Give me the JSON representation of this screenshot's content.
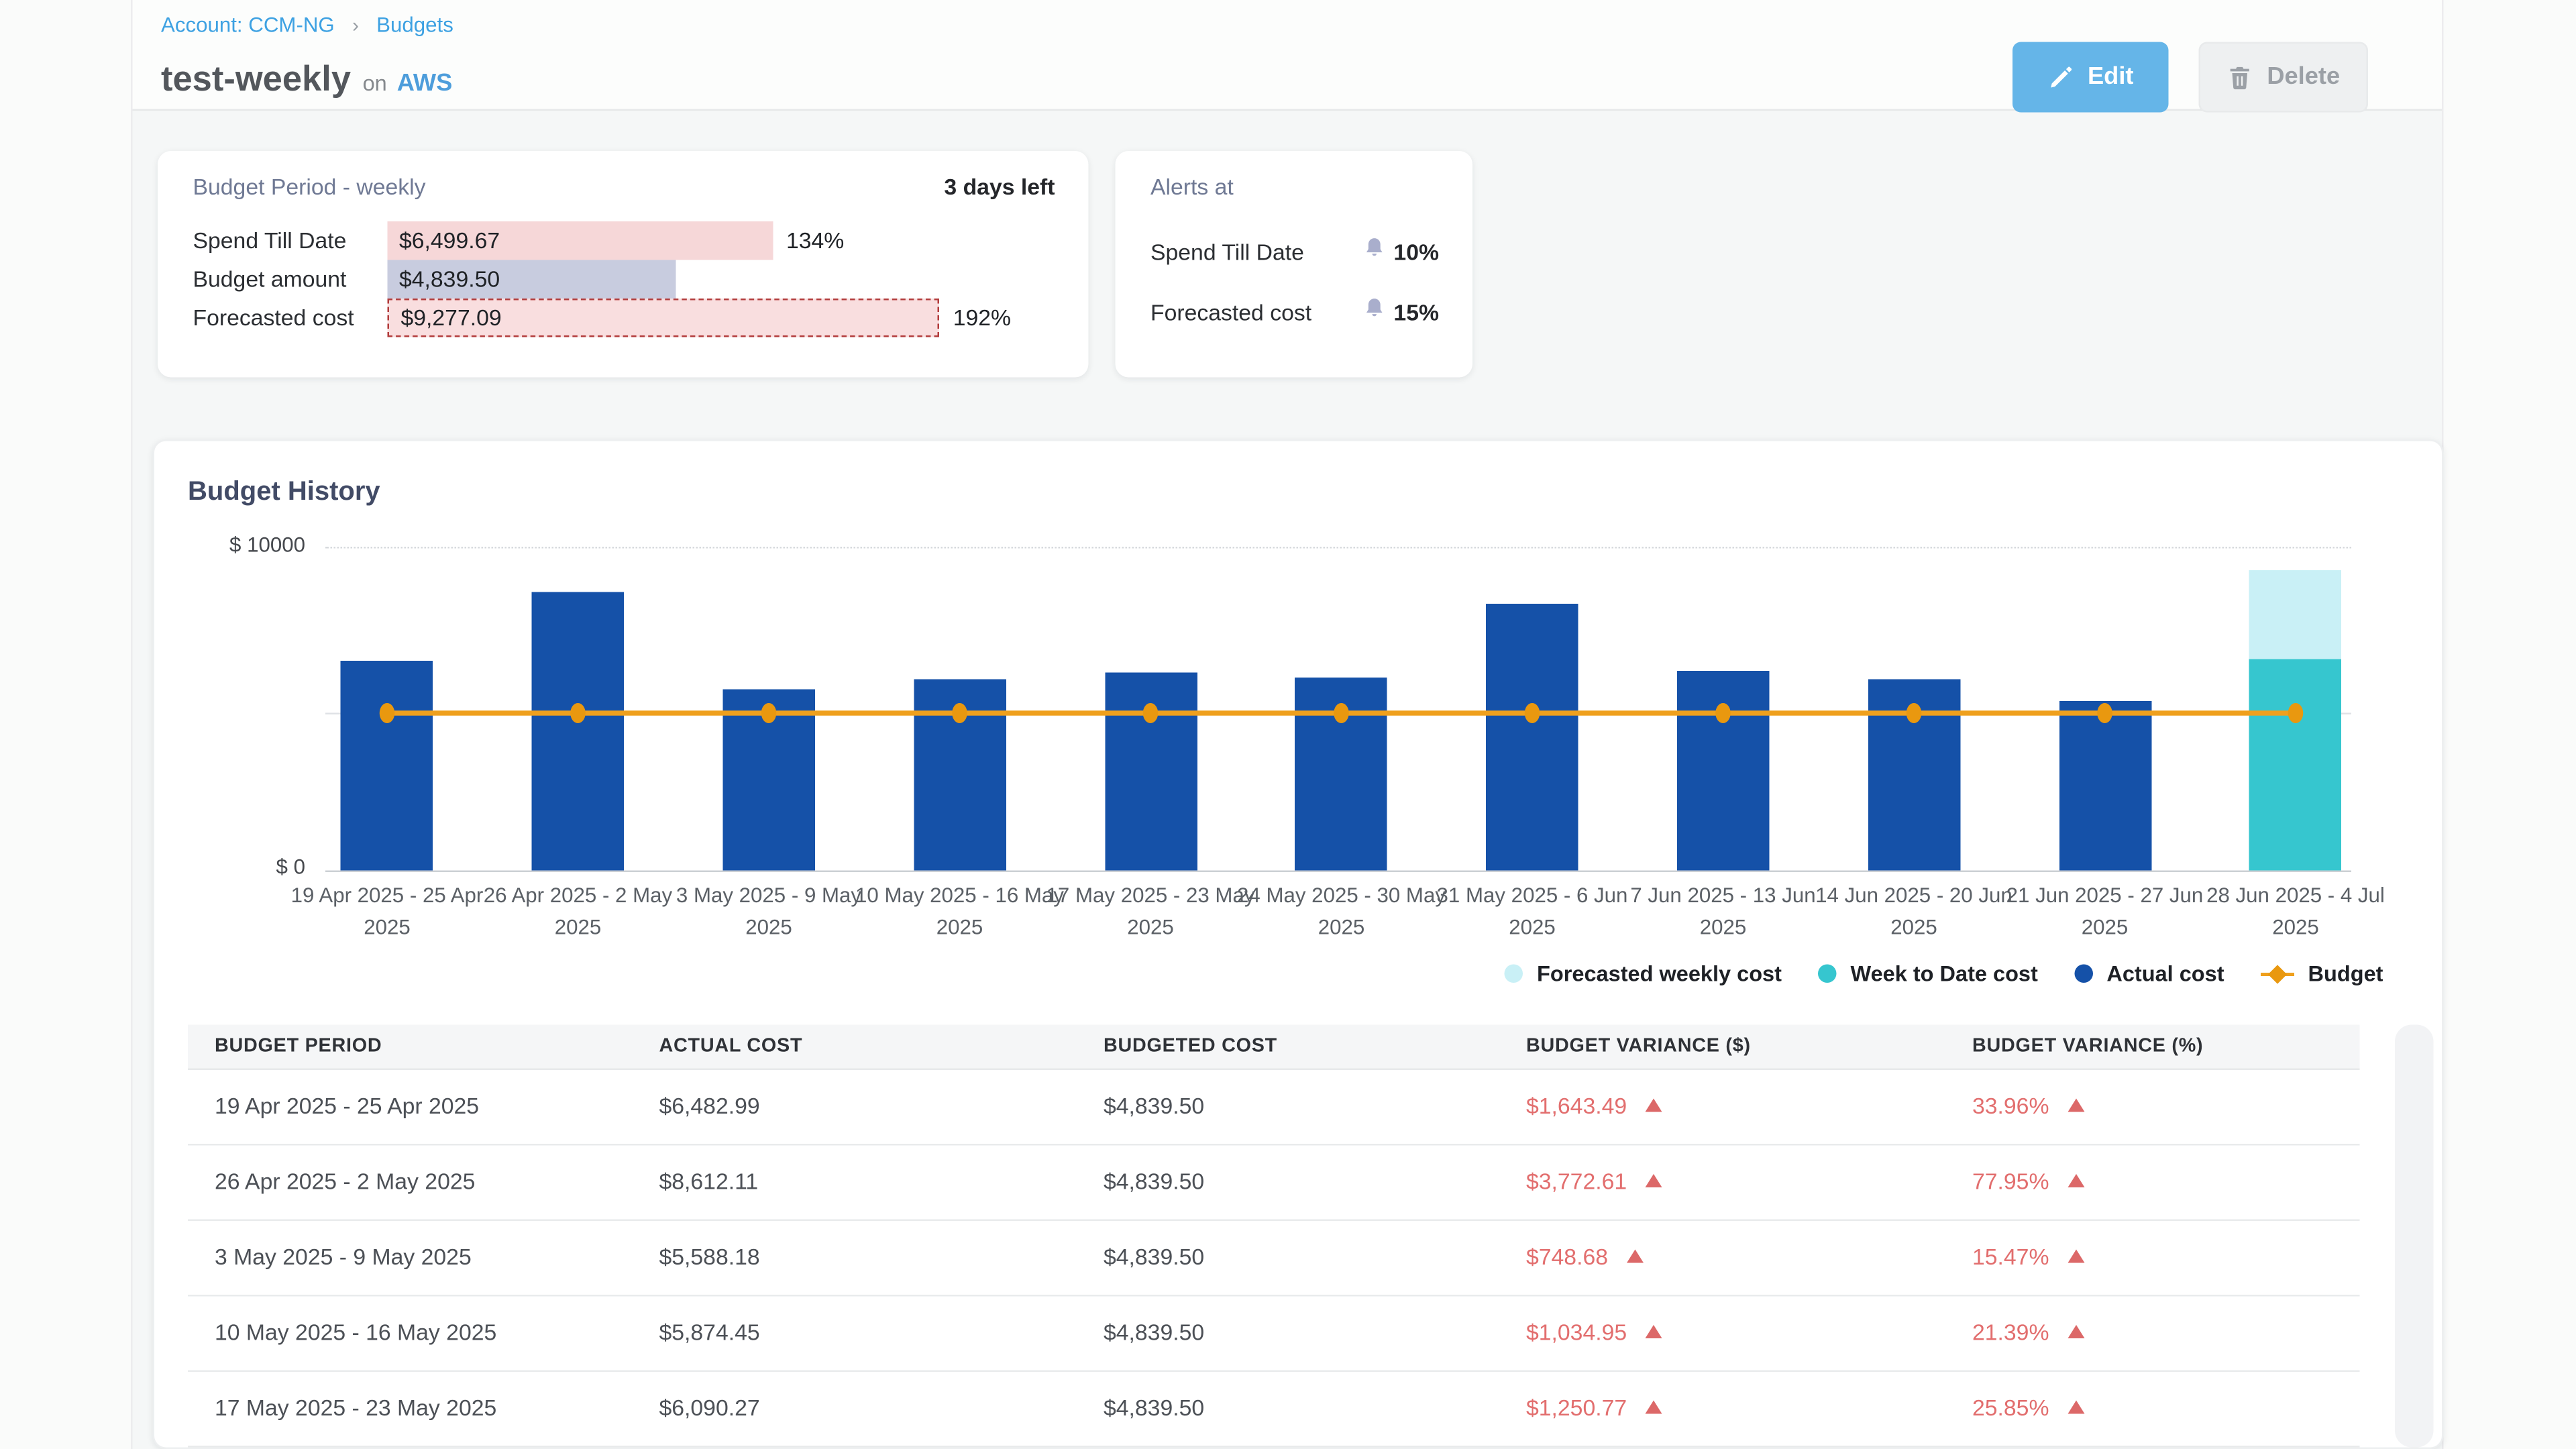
{
  "breadcrumb": {
    "account": "Account: CCM-NG",
    "separator": "›",
    "section": "Budgets"
  },
  "header": {
    "title": "test-weekly",
    "conjunction": "on",
    "platform": "AWS",
    "edit_label": "Edit",
    "delete_label": "Delete"
  },
  "budget_period_card": {
    "title": "Budget Period - weekly",
    "days_left": "3 days left",
    "rows": [
      {
        "label": "Spend Till Date",
        "value": "$6,499.67",
        "percent": 134,
        "percent_label": "134%",
        "style": "spend"
      },
      {
        "label": "Budget amount",
        "value": "$4,839.50",
        "percent": 100,
        "percent_label": "",
        "style": "budget"
      },
      {
        "label": "Forecasted cost",
        "value": "$9,277.09",
        "percent": 192,
        "percent_label": "192%",
        "style": "forecast"
      }
    ]
  },
  "alerts_card": {
    "title": "Alerts at",
    "rows": [
      {
        "label": "Spend Till Date",
        "threshold": "10%"
      },
      {
        "label": "Forecasted cost",
        "threshold": "15%"
      }
    ]
  },
  "chart_data": {
    "type": "bar",
    "title": "Budget History",
    "ylim": [
      0,
      10000
    ],
    "y_axis_labels": {
      "top": "$ 10000",
      "bottom": "$ 0"
    },
    "grid": "top-dotted",
    "legend_position": "bottom-right",
    "categories": [
      "19 Apr 2025 - 25 Apr 2025",
      "26 Apr 2025 - 2 May 2025",
      "3 May 2025 - 9 May 2025",
      "10 May 2025 - 16 May 2025",
      "17 May 2025 - 23 May 2025",
      "24 May 2025 - 30 May 2025",
      "31 May 2025 - 6 Jun 2025",
      "7 Jun 2025 - 13 Jun 2025",
      "14 Jun 2025 - 20 Jun 2025",
      "21 Jun 2025 - 27 Jun 2025",
      "28 Jun 2025 - 4 Jul 2025"
    ],
    "series": [
      {
        "name": "Actual cost",
        "type": "bar",
        "color": "#1551a8",
        "values": [
          6482.99,
          8612.11,
          5588.18,
          5874.45,
          6090.27,
          5930,
          8220,
          6140,
          5890,
          5230,
          null
        ]
      },
      {
        "name": "Week to Date cost",
        "type": "bar",
        "color": "#36c6cf",
        "values": [
          null,
          null,
          null,
          null,
          null,
          null,
          null,
          null,
          null,
          null,
          6499.67
        ]
      },
      {
        "name": "Forecasted weekly cost",
        "type": "bar",
        "color": "#c9f0f6",
        "values": [
          null,
          null,
          null,
          null,
          null,
          null,
          null,
          null,
          null,
          null,
          9277.09
        ]
      },
      {
        "name": "Budget",
        "type": "line",
        "color": "#efa01d",
        "values": [
          4839.5,
          4839.5,
          4839.5,
          4839.5,
          4839.5,
          4839.5,
          4839.5,
          4839.5,
          4839.5,
          4839.5,
          4839.5
        ]
      }
    ],
    "legend": [
      {
        "label": "Forecasted weekly cost",
        "swatch": "circle",
        "color": "#c9f0f6"
      },
      {
        "label": "Week to Date cost",
        "swatch": "circle",
        "color": "#36c6cf"
      },
      {
        "label": "Actual cost",
        "swatch": "circle",
        "color": "#1551a8"
      },
      {
        "label": "Budget",
        "swatch": "line-marker",
        "color": "#efa01d"
      }
    ]
  },
  "table": {
    "columns": [
      "BUDGET PERIOD",
      "ACTUAL COST",
      "BUDGETED COST",
      "BUDGET VARIANCE ($)",
      "BUDGET VARIANCE (%)"
    ],
    "rows": [
      {
        "period": "19 Apr 2025 - 25 Apr 2025",
        "actual": "$6,482.99",
        "budgeted": "$4,839.50",
        "variance_usd": "$1,643.49",
        "variance_pct": "33.96%",
        "direction": "up"
      },
      {
        "period": "26 Apr 2025 - 2 May 2025",
        "actual": "$8,612.11",
        "budgeted": "$4,839.50",
        "variance_usd": "$3,772.61",
        "variance_pct": "77.95%",
        "direction": "up"
      },
      {
        "period": "3 May 2025 - 9 May 2025",
        "actual": "$5,588.18",
        "budgeted": "$4,839.50",
        "variance_usd": "$748.68",
        "variance_pct": "15.47%",
        "direction": "up"
      },
      {
        "period": "10 May 2025 - 16 May 2025",
        "actual": "$5,874.45",
        "budgeted": "$4,839.50",
        "variance_usd": "$1,034.95",
        "variance_pct": "21.39%",
        "direction": "up"
      },
      {
        "period": "17 May 2025 - 23 May 2025",
        "actual": "$6,090.27",
        "budgeted": "$4,839.50",
        "variance_usd": "$1,250.77",
        "variance_pct": "25.85%",
        "direction": "up"
      }
    ]
  },
  "colors": {
    "accent_blue": "#65b5e8",
    "breadcrumb_blue": "#3da1e2",
    "bar_blue": "#1551a8",
    "teal": "#36c6cf",
    "light_cyan": "#c9f0f6",
    "budget_orange": "#efa01d",
    "variance_red": "#e26e6e",
    "spend_pink": "#f6d7d8",
    "budget_lavender": "#c8ccdf",
    "forecast_border_red": "#b23b3b"
  }
}
